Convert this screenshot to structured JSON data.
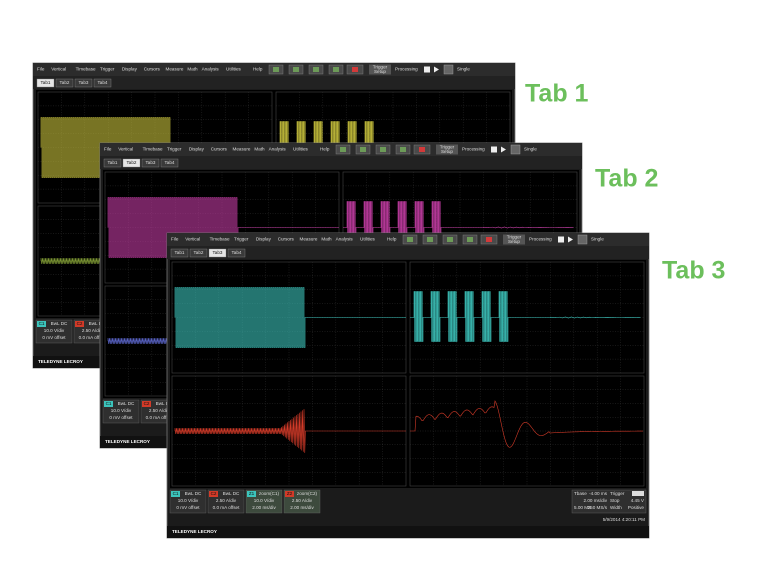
{
  "tab_labels": [
    "Tab 1",
    "Tab 2",
    "Tab 3"
  ],
  "menu": [
    "File",
    "Vertical",
    "Timebase",
    "Trigger",
    "Display",
    "Cursors",
    "Measure",
    "Math",
    "Analysis",
    "Utilities",
    "Help"
  ],
  "toolbar": {
    "trigger_setup": [
      "Trigger",
      "Setup"
    ],
    "processing": "Processing",
    "single": "Single"
  },
  "tabs": [
    "Tab1",
    "Tab2",
    "Tab3",
    "Tab4"
  ],
  "channels": [
    {
      "badge": "C1",
      "lines": [
        "BwL DC",
        "10.0 V/div",
        "0 mV offset"
      ]
    },
    {
      "badge": "C2",
      "lines": [
        "BwL DC",
        "2.50 A/div",
        "0.0 mA offset"
      ]
    },
    {
      "badge": "Z1",
      "lines": [
        "zoom(C1)",
        "10.0 V/div",
        "2.00 ms/div"
      ]
    },
    {
      "badge": "Z2",
      "lines": [
        "zoom(C2)",
        "2.50 A/div",
        "2.00 ms/div"
      ]
    }
  ],
  "timebase": [
    "Tbase",
    "-4.00 ms",
    "2.00 ms/div",
    "5.00 MS",
    "250 MS/s"
  ],
  "trigger": [
    "Trigger",
    "Stop",
    "4.45 V",
    "Width",
    "Positive"
  ],
  "date": "5/9/2014 4:20:11 PM",
  "brand": "TELEDYNE LECROY"
}
